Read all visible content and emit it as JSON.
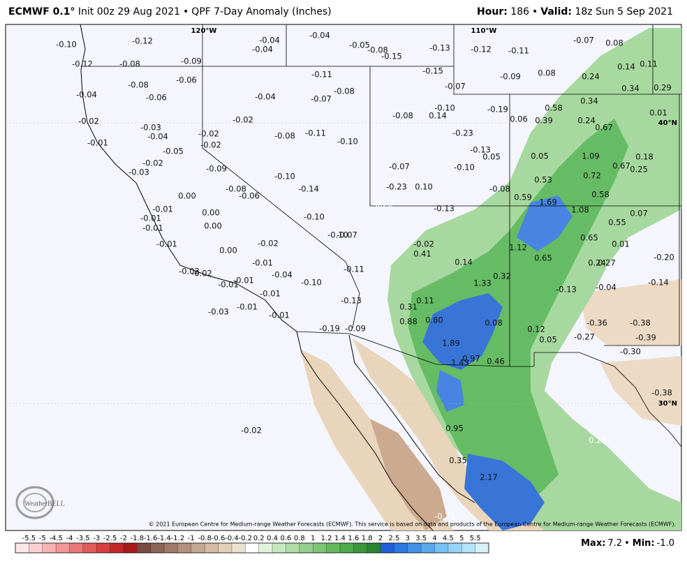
{
  "header": {
    "model": "ECMWF 0.1°",
    "info": "Init 00z 29 Aug 2021",
    "sep": "•",
    "product": "QPF 7-Day Anomaly (Inches)",
    "hour_label": "Hour:",
    "hour": "186",
    "valid_label": "Valid:",
    "valid": "18z Sun 5 Sep 2021"
  },
  "map": {
    "graticule": [
      "120°W",
      "110°W",
      "40°N",
      "30°N"
    ],
    "labels": [
      "-0.10",
      "-0.12",
      "-0.04",
      "-0.04",
      "-0.04",
      "-0.05",
      "-0.08",
      "-0.15",
      "-0.13",
      "-0.12",
      "-0.11",
      "-0.07",
      "0.08",
      "-0.12",
      "-0.08",
      "-0.09",
      "0.14",
      "0.11",
      "-0.06",
      "-0.11",
      "-0.15",
      "-0.09",
      "0.08",
      "0.24",
      "0.34",
      "0.29",
      "-0.08",
      "-0.08",
      "-0.07",
      "-0.04",
      "-0.06",
      "-0.04",
      "-0.07",
      "0.34",
      "-0.10",
      "-0.19",
      "0.58",
      "0.01",
      "-0.02",
      "-0.02",
      "-0.08",
      "0.14",
      "0.06",
      "0.39",
      "0.24",
      "0.67",
      "-0.03",
      "-0.04",
      "-0.02",
      "-0.08",
      "-0.11",
      "-0.23",
      "-0.10",
      "-0.01",
      "-0.02",
      "-0.05",
      "-0.13",
      "0.05",
      "0.05",
      "1.09",
      "0.18",
      "-0.02",
      "-0.09",
      "-0.07",
      "-0.10",
      "0.67",
      "0.25",
      "-0.03",
      "-0.10",
      "0.72",
      "0.53",
      "-0.08",
      "-0.14",
      "-0.06",
      "-0.23",
      "0.10",
      "-0.08",
      "0.58",
      "0.00",
      "0.59",
      "1.69",
      "-0.20",
      "-0.13",
      "1.08",
      "0.07",
      "-0.01",
      "0.00",
      "-0.10",
      "0.55",
      "-0.01",
      "-0.01",
      "0.00",
      "-0.10",
      "-0.07",
      "0.65",
      "0.01",
      "-0.01",
      "-0.02",
      "-0.02",
      "1.12",
      "0.41",
      "0.00",
      "0.65",
      "0.24",
      "0.27",
      "-0.20",
      "-0.01",
      "0.14",
      "-0.11",
      "-0.02",
      "-0.02",
      "-0.04",
      "0.32",
      "-0.10",
      "-0.14",
      "1.33",
      "-0.01",
      "-0.01",
      "-0.01",
      "-0.13",
      "-0.04",
      "-0.13",
      "0.11",
      "-0.01",
      "0.31",
      "-0.03",
      "-0.01",
      "0.88",
      "0.80",
      "0.08",
      "-0.36",
      "-0.38",
      "-0.19",
      "-0.09",
      "0.12",
      "-0.27",
      "-0.39",
      "0.05",
      "1.89",
      "-0.30",
      "0.97",
      "0.46",
      "1.43",
      "-0.38",
      "0.95",
      "0.24",
      "-0.02",
      "0.35",
      "2.17",
      "-0.76"
    ]
  },
  "copyright": "© 2021 European Centre for Medium-range Weather Forecasts (ECMWF). This service is based on data and products of the European Centre for Medium-range Weather Forecasts (ECMWF).",
  "logo": "WeatherBELL",
  "colorbar": {
    "labels": [
      -5.5,
      -5,
      -4.5,
      -4,
      -3.5,
      -3,
      -2.5,
      -2,
      -1.8,
      -1.6,
      -1.4,
      -1.2,
      -1,
      -0.8,
      -0.6,
      -0.4,
      -0.2,
      0.2,
      0.4,
      0.6,
      0.8,
      1,
      1.2,
      1.4,
      1.6,
      1.8,
      2,
      2.5,
      3,
      3.5,
      4,
      4.5,
      5,
      5.5
    ],
    "colors": [
      "#fce6e6",
      "#f9cfcf",
      "#f5b3b3",
      "#f09595",
      "#ea7878",
      "#e15b5b",
      "#d64040",
      "#c32828",
      "#a81c1c",
      "#7b4a43",
      "#8d6556",
      "#a07b69",
      "#b2917d",
      "#c3a690",
      "#d3bba4",
      "#e2cfba",
      "#eee0cf",
      "#ffffff",
      "#e1f2da",
      "#c8e7c0",
      "#afdca7",
      "#95d08d",
      "#7dc575",
      "#64b95e",
      "#4da949",
      "#3b983c",
      "#2b8431",
      "#1f5fd8",
      "#2d79e1",
      "#3f92e7",
      "#59aaec",
      "#77c0f1",
      "#96d3f5",
      "#b6e4f8",
      "#d5f2fb"
    ]
  },
  "footer": {
    "max_label": "Max:",
    "max": "7.2",
    "sep": "•",
    "min_label": "Min:",
    "min": "-1.0"
  }
}
